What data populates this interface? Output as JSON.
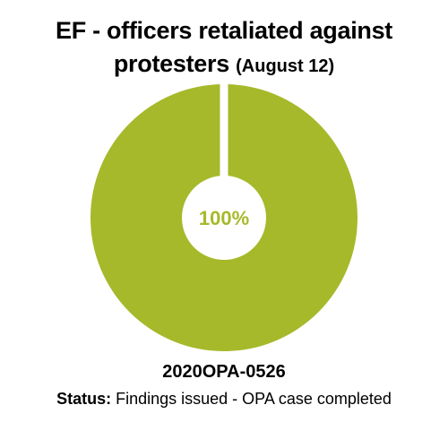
{
  "title": {
    "main": "EF - officers retaliated against",
    "line2": "protesters",
    "date": "(August 12)"
  },
  "chart_data": {
    "type": "pie",
    "slices": [
      {
        "label": "Findings issued - OPA case completed",
        "value": 100
      }
    ],
    "center_label": "100%",
    "colors": {
      "slice": "#a6b92a",
      "separator": "#ffffff",
      "center_fill": "#ffffff"
    }
  },
  "case": {
    "number": "2020OPA-0526"
  },
  "status": {
    "label": "Status:",
    "value": "Findings issued - OPA case completed"
  }
}
